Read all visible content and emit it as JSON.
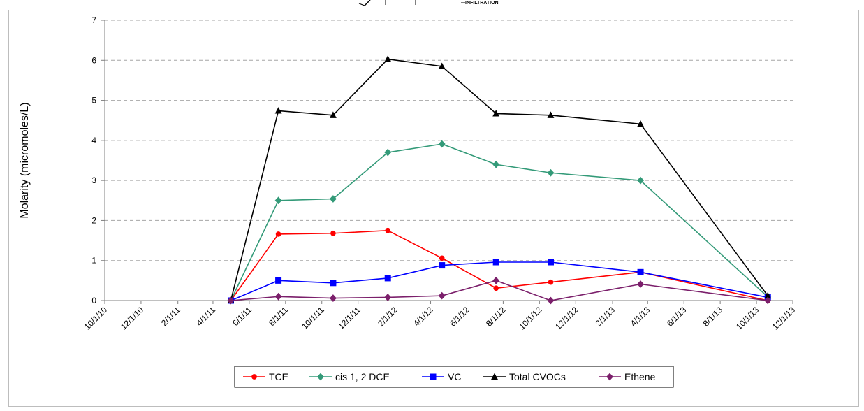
{
  "header_fragment": {
    "text": "INFILTRATION"
  },
  "chart_data": {
    "type": "line",
    "title": "",
    "xlabel": "",
    "ylabel": "Molarity (micromoles/L)",
    "ylim": [
      0,
      7
    ],
    "yticks": [
      0,
      1,
      2,
      3,
      4,
      5,
      6,
      7
    ],
    "x_axis_type": "date",
    "xlim": [
      "2010-10-01",
      "2013-12-01"
    ],
    "xticks": [
      "10/1/10",
      "12/1/10",
      "2/1/11",
      "4/1/11",
      "6/1/11",
      "8/1/11",
      "10/1/11",
      "12/1/11",
      "2/1/12",
      "4/1/12",
      "6/1/12",
      "8/1/12",
      "10/1/12",
      "12/1/12",
      "2/1/13",
      "4/1/13",
      "6/1/13",
      "8/1/13",
      "10/1/13",
      "12/1/13"
    ],
    "grid": {
      "horizontal": true,
      "vertical": false,
      "style": "dashed"
    },
    "legend_position": "bottom",
    "x": [
      "2011-05-01",
      "2011-07-20",
      "2011-10-20",
      "2012-01-20",
      "2012-04-20",
      "2012-07-20",
      "2012-10-20",
      "2013-03-20",
      "2013-10-20"
    ],
    "series": [
      {
        "name": "TCE",
        "color": "#ff0000",
        "marker": "circle",
        "values": [
          0,
          1.66,
          1.68,
          1.75,
          1.06,
          0.31,
          0.46,
          0.71,
          0
        ]
      },
      {
        "name": "cis 1, 2 DCE",
        "color": "#339a78",
        "marker": "diamond",
        "values": [
          0,
          2.5,
          2.54,
          3.7,
          3.91,
          3.4,
          3.19,
          3.0,
          0.09
        ]
      },
      {
        "name": "VC",
        "color": "#0000ff",
        "marker": "square",
        "values": [
          0,
          0.5,
          0.44,
          0.56,
          0.88,
          0.96,
          0.96,
          0.71,
          0.08
        ]
      },
      {
        "name": "Total CVOCs",
        "color": "#000000",
        "marker": "triangle",
        "values": [
          0,
          4.74,
          4.63,
          6.03,
          5.85,
          4.67,
          4.63,
          4.41,
          0.12
        ]
      },
      {
        "name": "Ethene",
        "color": "#7b1f6b",
        "marker": "diamond",
        "values": [
          0,
          0.1,
          0.06,
          0.08,
          0.12,
          0.5,
          0,
          0.41,
          0
        ]
      }
    ]
  }
}
